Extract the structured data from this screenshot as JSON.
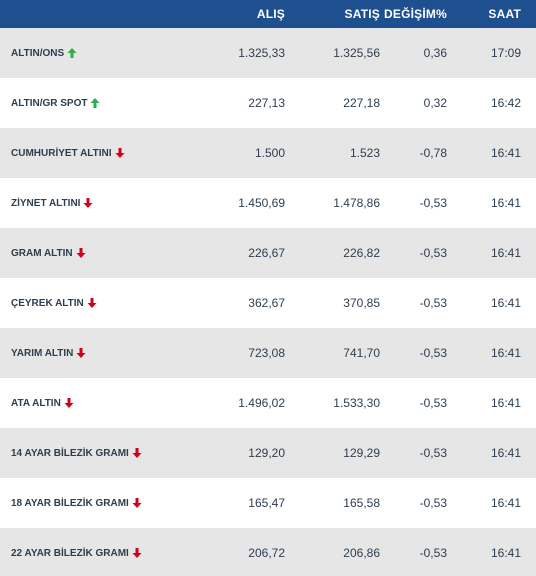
{
  "header": {
    "name": "",
    "alis": "ALIŞ",
    "satis": "SATIŞ",
    "degisim": "DEĞİŞİM%",
    "saat": "SAAT"
  },
  "colors": {
    "header_bg": "#1e4f8f",
    "up": "#2eae4a",
    "down": "#d0021b",
    "shade": "#e6e6e6"
  },
  "rows": [
    {
      "name": "ALTIN/ONS",
      "trend": "up",
      "alis": "1.325,33",
      "satis": "1.325,56",
      "degisim": "0,36",
      "saat": "17:09"
    },
    {
      "name": "ALTIN/GR SPOT",
      "trend": "up",
      "alis": "227,13",
      "satis": "227,18",
      "degisim": "0,32",
      "saat": "16:42"
    },
    {
      "name": "CUMHURİYET ALTINI",
      "trend": "down",
      "alis": "1.500",
      "satis": "1.523",
      "degisim": "-0,78",
      "saat": "16:41"
    },
    {
      "name": "ZİYNET ALTINI",
      "trend": "down",
      "alis": "1.450,69",
      "satis": "1.478,86",
      "degisim": "-0,53",
      "saat": "16:41"
    },
    {
      "name": "GRAM ALTIN",
      "trend": "down",
      "alis": "226,67",
      "satis": "226,82",
      "degisim": "-0,53",
      "saat": "16:41"
    },
    {
      "name": "ÇEYREK ALTIN",
      "trend": "down",
      "alis": "362,67",
      "satis": "370,85",
      "degisim": "-0,53",
      "saat": "16:41"
    },
    {
      "name": "YARIM ALTIN",
      "trend": "down",
      "alis": "723,08",
      "satis": "741,70",
      "degisim": "-0,53",
      "saat": "16:41"
    },
    {
      "name": "ATA ALTIN",
      "trend": "down",
      "alis": "1.496,02",
      "satis": "1.533,30",
      "degisim": "-0,53",
      "saat": "16:41"
    },
    {
      "name": "14 AYAR BİLEZİK GRAMI",
      "trend": "down",
      "alis": "129,20",
      "satis": "129,29",
      "degisim": "-0,53",
      "saat": "16:41"
    },
    {
      "name": "18 AYAR BİLEZİK GRAMI",
      "trend": "down",
      "alis": "165,47",
      "satis": "165,58",
      "degisim": "-0,53",
      "saat": "16:41"
    },
    {
      "name": "22 AYAR BİLEZİK GRAMI",
      "trend": "down",
      "alis": "206,72",
      "satis": "206,86",
      "degisim": "-0,53",
      "saat": "16:41"
    }
  ]
}
